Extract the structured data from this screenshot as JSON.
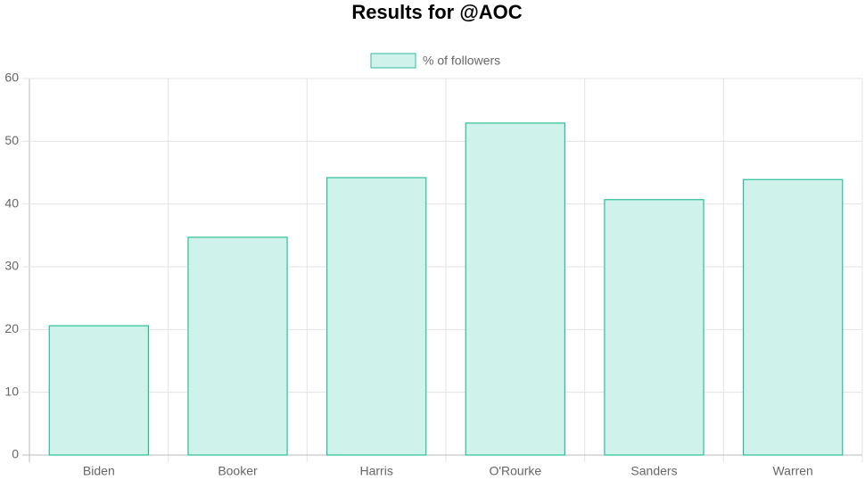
{
  "chart_data": {
    "type": "bar",
    "title": "Results for @AOC",
    "categories": [
      "Biden",
      "Booker",
      "Harris",
      "O'Rourke",
      "Sanders",
      "Warren"
    ],
    "series": [
      {
        "name": "% of followers",
        "color": "#cff2ea",
        "border_color": "#2cbf9b",
        "values": [
          20.6,
          34.7,
          44.2,
          52.9,
          40.7,
          43.9
        ]
      }
    ],
    "ylim": [
      0,
      60
    ],
    "yticks": [
      0,
      10,
      20,
      30,
      40,
      50,
      60
    ],
    "grid": true,
    "legend": "top"
  }
}
